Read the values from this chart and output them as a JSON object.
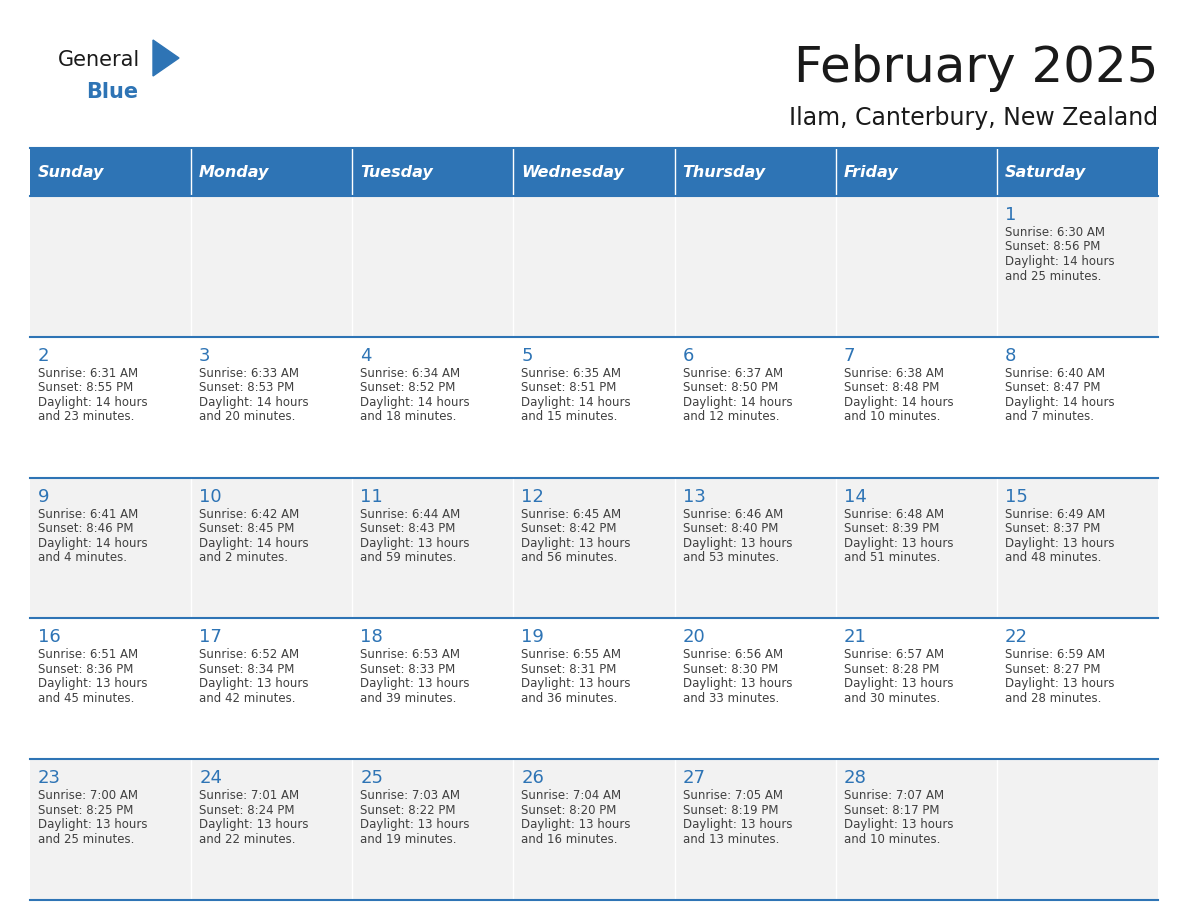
{
  "title": "February 2025",
  "subtitle": "Ilam, Canterbury, New Zealand",
  "header_bg": "#2E74B5",
  "header_text_color": "#FFFFFF",
  "cell_bg_row0": "#F2F2F2",
  "cell_bg_row1": "#FFFFFF",
  "cell_border_color": "#2E74B5",
  "day_headers": [
    "Sunday",
    "Monday",
    "Tuesday",
    "Wednesday",
    "Thursday",
    "Friday",
    "Saturday"
  ],
  "title_color": "#1A1A1A",
  "subtitle_color": "#1A1A1A",
  "day_number_color": "#2E74B5",
  "text_color": "#404040",
  "calendar_data": [
    [
      null,
      null,
      null,
      null,
      null,
      null,
      {
        "day": 1,
        "sunrise": "6:30 AM",
        "sunset": "8:56 PM",
        "daylight": "14 hours",
        "daylight2": "and 25 minutes."
      }
    ],
    [
      {
        "day": 2,
        "sunrise": "6:31 AM",
        "sunset": "8:55 PM",
        "daylight": "14 hours",
        "daylight2": "and 23 minutes."
      },
      {
        "day": 3,
        "sunrise": "6:33 AM",
        "sunset": "8:53 PM",
        "daylight": "14 hours",
        "daylight2": "and 20 minutes."
      },
      {
        "day": 4,
        "sunrise": "6:34 AM",
        "sunset": "8:52 PM",
        "daylight": "14 hours",
        "daylight2": "and 18 minutes."
      },
      {
        "day": 5,
        "sunrise": "6:35 AM",
        "sunset": "8:51 PM",
        "daylight": "14 hours",
        "daylight2": "and 15 minutes."
      },
      {
        "day": 6,
        "sunrise": "6:37 AM",
        "sunset": "8:50 PM",
        "daylight": "14 hours",
        "daylight2": "and 12 minutes."
      },
      {
        "day": 7,
        "sunrise": "6:38 AM",
        "sunset": "8:48 PM",
        "daylight": "14 hours",
        "daylight2": "and 10 minutes."
      },
      {
        "day": 8,
        "sunrise": "6:40 AM",
        "sunset": "8:47 PM",
        "daylight": "14 hours",
        "daylight2": "and 7 minutes."
      }
    ],
    [
      {
        "day": 9,
        "sunrise": "6:41 AM",
        "sunset": "8:46 PM",
        "daylight": "14 hours",
        "daylight2": "and 4 minutes."
      },
      {
        "day": 10,
        "sunrise": "6:42 AM",
        "sunset": "8:45 PM",
        "daylight": "14 hours",
        "daylight2": "and 2 minutes."
      },
      {
        "day": 11,
        "sunrise": "6:44 AM",
        "sunset": "8:43 PM",
        "daylight": "13 hours",
        "daylight2": "and 59 minutes."
      },
      {
        "day": 12,
        "sunrise": "6:45 AM",
        "sunset": "8:42 PM",
        "daylight": "13 hours",
        "daylight2": "and 56 minutes."
      },
      {
        "day": 13,
        "sunrise": "6:46 AM",
        "sunset": "8:40 PM",
        "daylight": "13 hours",
        "daylight2": "and 53 minutes."
      },
      {
        "day": 14,
        "sunrise": "6:48 AM",
        "sunset": "8:39 PM",
        "daylight": "13 hours",
        "daylight2": "and 51 minutes."
      },
      {
        "day": 15,
        "sunrise": "6:49 AM",
        "sunset": "8:37 PM",
        "daylight": "13 hours",
        "daylight2": "and 48 minutes."
      }
    ],
    [
      {
        "day": 16,
        "sunrise": "6:51 AM",
        "sunset": "8:36 PM",
        "daylight": "13 hours",
        "daylight2": "and 45 minutes."
      },
      {
        "day": 17,
        "sunrise": "6:52 AM",
        "sunset": "8:34 PM",
        "daylight": "13 hours",
        "daylight2": "and 42 minutes."
      },
      {
        "day": 18,
        "sunrise": "6:53 AM",
        "sunset": "8:33 PM",
        "daylight": "13 hours",
        "daylight2": "and 39 minutes."
      },
      {
        "day": 19,
        "sunrise": "6:55 AM",
        "sunset": "8:31 PM",
        "daylight": "13 hours",
        "daylight2": "and 36 minutes."
      },
      {
        "day": 20,
        "sunrise": "6:56 AM",
        "sunset": "8:30 PM",
        "daylight": "13 hours",
        "daylight2": "and 33 minutes."
      },
      {
        "day": 21,
        "sunrise": "6:57 AM",
        "sunset": "8:28 PM",
        "daylight": "13 hours",
        "daylight2": "and 30 minutes."
      },
      {
        "day": 22,
        "sunrise": "6:59 AM",
        "sunset": "8:27 PM",
        "daylight": "13 hours",
        "daylight2": "and 28 minutes."
      }
    ],
    [
      {
        "day": 23,
        "sunrise": "7:00 AM",
        "sunset": "8:25 PM",
        "daylight": "13 hours",
        "daylight2": "and 25 minutes."
      },
      {
        "day": 24,
        "sunrise": "7:01 AM",
        "sunset": "8:24 PM",
        "daylight": "13 hours",
        "daylight2": "and 22 minutes."
      },
      {
        "day": 25,
        "sunrise": "7:03 AM",
        "sunset": "8:22 PM",
        "daylight": "13 hours",
        "daylight2": "and 19 minutes."
      },
      {
        "day": 26,
        "sunrise": "7:04 AM",
        "sunset": "8:20 PM",
        "daylight": "13 hours",
        "daylight2": "and 16 minutes."
      },
      {
        "day": 27,
        "sunrise": "7:05 AM",
        "sunset": "8:19 PM",
        "daylight": "13 hours",
        "daylight2": "and 13 minutes."
      },
      {
        "day": 28,
        "sunrise": "7:07 AM",
        "sunset": "8:17 PM",
        "daylight": "13 hours",
        "daylight2": "and 10 minutes."
      },
      null
    ]
  ]
}
